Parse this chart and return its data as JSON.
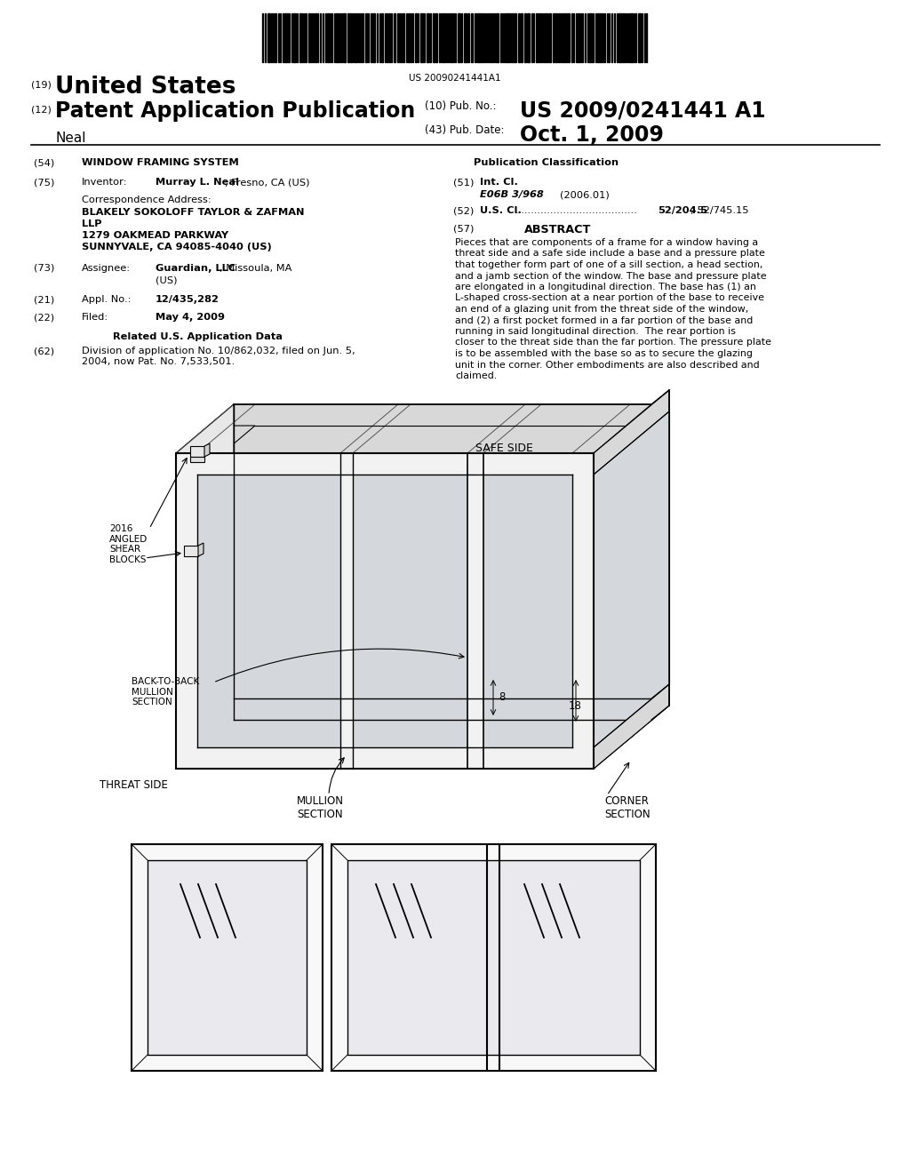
{
  "bg_color": "#ffffff",
  "barcode_text": "US 20090241441A1",
  "country": "United States",
  "pub_type": "Patent Application Publication",
  "pub_no_label": "(10) Pub. No.:",
  "pub_no_val": "US 2009/0241441 A1",
  "pub_date_label": "(43) Pub. Date:",
  "pub_date_val": "Oct. 1, 2009",
  "inventor_name": "Neal",
  "title_label": "WINDOW FRAMING SYSTEM",
  "inv_label": "Inventor:",
  "inv_val_bold": "Murray L. Neal",
  "inv_val_norm": ", Fresno, CA (US)",
  "corr_label": "Correspondence Address:",
  "corr_line1": "BLAKELY SOKOLOFF TAYLOR & ZAFMAN",
  "corr_line2": "LLP",
  "corr_line3": "1279 OAKMEAD PARKWAY",
  "corr_line4": "SUNNYVALE, CA 94085-4040 (US)",
  "asgn_label": "Assignee:",
  "asgn_bold": "Guardian, LLC",
  "asgn_norm": ", Missoula, MA",
  "asgn_norm2": "(US)",
  "appl_label": "Appl. No.:",
  "appl_val": "12/435,282",
  "filed_label": "Filed:",
  "filed_val": "May 4, 2009",
  "related_header": "Related U.S. Application Data",
  "related_num": "(62)",
  "related_text": "Division of application No. 10/862,032, filed on Jun. 5,\n2004, now Pat. No. 7,533,501.",
  "pub_class_header": "Publication Classification",
  "int_cl_label": "Int. Cl.",
  "int_cl_val": "E06B 3/968",
  "int_cl_year": "(2006.01)",
  "us_cl_label": "U.S. Cl.",
  "us_cl_dots": "......................................",
  "us_cl_val": "52/204.5",
  "us_cl_val2": "; 52/745.15",
  "abs_header": "ABSTRACT",
  "abstract_line1": "Pieces that are components of a frame for a window having a",
  "abstract_line2": "threat side and a safe side include a base and a pressure plate",
  "abstract_line3": "that together form part of one of a sill section, a head section,",
  "abstract_line4": "and a jamb section of the window. The base and pressure plate",
  "abstract_line5": "are elongated in a longitudinal direction. The base has (1) an",
  "abstract_line6": "L-shaped cross-section at a near portion of the base to receive",
  "abstract_line7": "an end of a glazing unit from the threat side of the window,",
  "abstract_line8": "and (2) a first pocket formed in a far portion of the base and",
  "abstract_line9": "running in said longitudinal direction.  The rear portion is",
  "abstract_line10": "closer to the threat side than the far portion. The pressure plate",
  "abstract_line11": "is to be assembled with the base so as to secure the glazing",
  "abstract_line12": "unit in the corner. Other embodiments are also described and",
  "abstract_line13": "claimed.",
  "label_2016": "2016\nANGLED\nSHEAR\nBLOCKS",
  "label_safe": "SAFE SIDE",
  "label_back": "BACK-TO-BACK\nMULLION\nSECTION",
  "label_threat": "THREAT SIDE",
  "label_mullion": "MULLION\nSECTION",
  "label_corner": "CORNER\nSECTION",
  "label_8": "8",
  "label_18": "18"
}
